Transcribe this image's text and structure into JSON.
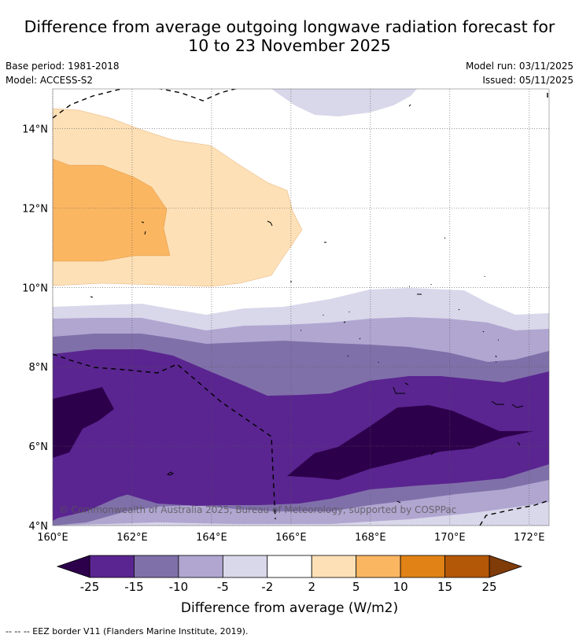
{
  "title": {
    "line1": "Difference from average outgoing longwave radiation forecast for",
    "line2": "10 to 23 November 2025"
  },
  "meta": {
    "base_period": "Base period: 1981-2018",
    "model": "Model: ACCESS-S2",
    "model_run": "Model run: 03/11/2025",
    "issued": "Issued: 05/11/2025"
  },
  "map": {
    "lon_range": [
      160,
      172.5
    ],
    "lat_range": [
      4,
      15
    ],
    "lon_ticks": [
      160,
      162,
      164,
      166,
      168,
      170,
      172
    ],
    "lat_ticks": [
      4,
      6,
      8,
      10,
      12,
      14
    ],
    "lon_tick_labels": [
      "160°E",
      "162°E",
      "164°E",
      "166°E",
      "168°E",
      "170°E",
      "172°E"
    ],
    "lat_tick_labels": [
      "4°N",
      "6°N",
      "8°N",
      "10°N",
      "12°N",
      "14°N"
    ],
    "copyright": "© Commonwealth of Australia 2025, Bureau of Meteorology, supported by COSPPac"
  },
  "colorbar": {
    "ticks": [
      "-25",
      "-15",
      "-10",
      "-5",
      "-2",
      "2",
      "5",
      "10",
      "15",
      "25"
    ],
    "bins": [
      "#5a2590",
      "#8070aa",
      "#b0a6d0",
      "#d9d7ea",
      "#ffffff",
      "#fde0b6",
      "#fbb662",
      "#e08215",
      "#b35806"
    ],
    "under_color": "#2d004b",
    "over_color": "#7f3b08",
    "label": "Difference from average (W/m2)"
  },
  "footnote": "--  --  -- EEZ border V11 (Flanders Marine Institute, 2019)."
}
